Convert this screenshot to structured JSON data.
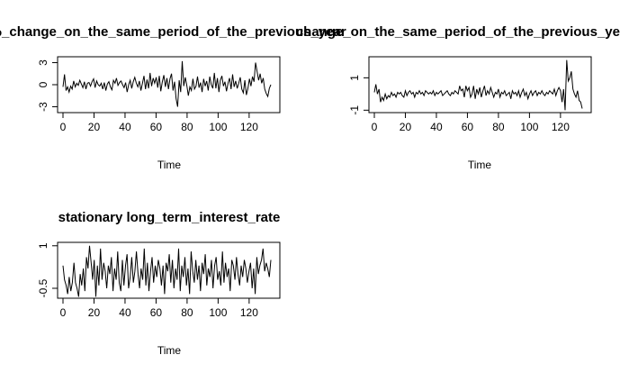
{
  "chart_data": [
    {
      "type": "line",
      "title": "CPI_%_change_on_the_same_period_of_the_previous_year",
      "xlabel": "Time",
      "ylabel": "",
      "xlim": [
        0,
        134
      ],
      "ylim": [
        -3.8,
        3.8
      ],
      "xticks": [
        0,
        20,
        40,
        60,
        80,
        100,
        120
      ],
      "yticks": [
        -3,
        0,
        3
      ],
      "series": [
        {
          "values": [
            -0.3,
            1.4,
            -0.8,
            -0.3,
            -1.0,
            -0.2,
            -0.6,
            0.5,
            -0.3,
            0.2,
            -0.1,
            0.6,
            0.1,
            -0.4,
            0.4,
            -0.6,
            0.2,
            0.3,
            -0.2,
            0.4,
            0.8,
            -0.4,
            0.5,
            0.0,
            -0.2,
            0.2,
            -0.6,
            0.3,
            -0.8,
            0.1,
            0.4,
            -0.3,
            -0.7,
            0.6,
            0.2,
            0.9,
            -0.1,
            0.3,
            0.5,
            0.0,
            -0.4,
            0.3,
            -1.0,
            0.0,
            0.6,
            -0.5,
            0.4,
            1.0,
            0.2,
            -0.3,
            0.5,
            -0.8,
            0.2,
            1.2,
            -0.6,
            0.7,
            -0.5,
            1.6,
            -0.2,
            0.9,
            0.2,
            1.0,
            -0.4,
            1.2,
            -0.9,
            0.4,
            1.3,
            -0.3,
            0.9,
            -0.6,
            0.8,
            1.5,
            -0.8,
            0.4,
            -1.9,
            -3.0,
            0.6,
            -1.0,
            3.2,
            -0.2,
            1.0,
            -0.1,
            -1.5,
            -0.3,
            -0.8,
            0.8,
            -0.6,
            -0.2,
            1.1,
            -0.4,
            0.3,
            -1.0,
            0.8,
            -0.2,
            0.5,
            -0.8,
            1.1,
            0.0,
            -0.5,
            1.6,
            -0.5,
            0.9,
            -1.0,
            0.6,
            1.2,
            -0.2,
            0.4,
            -0.9,
            0.2,
            0.9,
            -0.6,
            1.4,
            -0.3,
            0.5,
            -0.5,
            0.2,
            1.0,
            -0.6,
            -1.1,
            0.6,
            -1.4,
            -0.5,
            0.8,
            -0.2,
            1.1,
            0.4,
            3.0,
            1.8,
            0.6,
            1.5,
            0.2,
            0.9,
            -0.6,
            -1.2,
            -1.6,
            -0.5,
            0.0
          ]
        }
      ]
    },
    {
      "type": "line",
      "title": "change_on_the_same_period_of_the_previous_year",
      "xlabel": "Time",
      "ylabel": "",
      "xlim": [
        0,
        134
      ],
      "ylim": [
        -1.15,
        2.3
      ],
      "xticks": [
        0,
        20,
        40,
        60,
        80,
        100,
        120
      ],
      "yticks": [
        -1.0,
        1.0
      ],
      "series": [
        {
          "values": [
            0.1,
            0.6,
            0.0,
            0.3,
            -0.5,
            -0.2,
            -0.4,
            0.0,
            -0.3,
            -0.1,
            -0.2,
            0.1,
            -0.1,
            0.0,
            -0.2,
            0.1,
            0.0,
            0.1,
            -0.1,
            -0.2,
            0.2,
            -0.1,
            0.1,
            0.2,
            0.0,
            0.1,
            -0.2,
            0.1,
            0.0,
            0.2,
            0.0,
            0.1,
            -0.1,
            0.2,
            0.1,
            0.0,
            0.1,
            0.0,
            0.2,
            -0.1,
            0.1,
            0.0,
            0.1,
            0.2,
            -0.1,
            0.0,
            0.1,
            0.2,
            0.0,
            -0.1,
            0.1,
            0.0,
            0.2,
            0.1,
            0.0,
            0.5,
            0.2,
            0.3,
            -0.2,
            0.5,
            0.2,
            0.4,
            -0.2,
            0.0,
            0.5,
            -0.3,
            0.3,
            0.0,
            0.4,
            -0.2,
            0.2,
            0.5,
            -0.1,
            0.2,
            0.0,
            0.4,
            0.1,
            -0.2,
            0.1,
            0.0,
            0.3,
            -0.2,
            0.1,
            0.0,
            0.2,
            -0.1,
            0.0,
            0.1,
            -0.3,
            0.2,
            0.0,
            0.1,
            -0.1,
            0.2,
            -0.2,
            0.1,
            0.3,
            -0.1,
            0.1,
            -0.3,
            0.0,
            0.2,
            -0.1,
            0.1,
            0.2,
            -0.1,
            0.1,
            0.0,
            0.2,
            0.0,
            -0.1,
            0.1,
            0.0,
            0.2,
            0.1,
            0.0,
            0.3,
            -0.1,
            0.2,
            0.4,
            0.2,
            -0.5,
            0.3,
            -1.0,
            2.1,
            0.8,
            1.0,
            1.4,
            0.3,
            0.0,
            -0.2,
            0.2,
            -0.4,
            -0.5,
            -0.9
          ]
        }
      ]
    },
    {
      "type": "line",
      "title": "stationary long_term_interest_rate",
      "xlabel": "Time",
      "ylabel": "",
      "xlim": [
        0,
        134
      ],
      "ylim": [
        -0.85,
        1.12
      ],
      "xticks": [
        0,
        20,
        40,
        60,
        80,
        100,
        120
      ],
      "yticks": [
        -0.5,
        1.0
      ],
      "series": [
        {
          "values": [
            0.3,
            -0.2,
            -0.4,
            -0.7,
            -0.1,
            -0.6,
            -0.3,
            0.4,
            -0.3,
            -0.5,
            -0.8,
            0.0,
            -0.4,
            0.2,
            -0.6,
            0.6,
            0.2,
            1.0,
            0.4,
            -0.2,
            0.5,
            -0.8,
            0.3,
            -0.4,
            0.9,
            -0.2,
            0.4,
            0.1,
            -0.5,
            0.3,
            0.0,
            0.6,
            -0.6,
            0.2,
            -0.2,
            0.8,
            -0.3,
            -0.6,
            0.5,
            -0.4,
            0.3,
            0.7,
            -0.5,
            -0.1,
            0.6,
            -0.3,
            0.1,
            0.8,
            0.0,
            -0.5,
            0.2,
            -0.2,
            0.9,
            -0.4,
            0.4,
            -0.6,
            0.1,
            0.6,
            -0.3,
            0.3,
            -0.1,
            0.5,
            0.2,
            -0.4,
            0.3,
            -0.7,
            0.4,
            0.1,
            0.7,
            -0.3,
            0.5,
            -0.5,
            0.2,
            -0.2,
            0.9,
            -0.6,
            0.3,
            -0.1,
            0.6,
            -0.4,
            0.2,
            -0.7,
            0.8,
            0.1,
            -0.3,
            0.5,
            -0.2,
            0.3,
            -0.6,
            0.4,
            0.0,
            0.7,
            -0.4,
            0.2,
            -0.1,
            0.5,
            -0.5,
            0.3,
            0.6,
            -0.2,
            0.1,
            -0.4,
            0.8,
            -0.3,
            0.4,
            -0.1,
            0.2,
            -0.6,
            0.5,
            0.3,
            -0.2,
            0.6,
            0.0,
            -0.4,
            0.3,
            -0.1,
            0.5,
            0.2,
            -0.3,
            0.1,
            0.4,
            -0.5,
            0.2,
            -0.7,
            0.6,
            0.0,
            0.3,
            0.5,
            0.9,
            0.1,
            0.4,
            0.2,
            -0.1,
            0.5
          ]
        }
      ]
    }
  ]
}
